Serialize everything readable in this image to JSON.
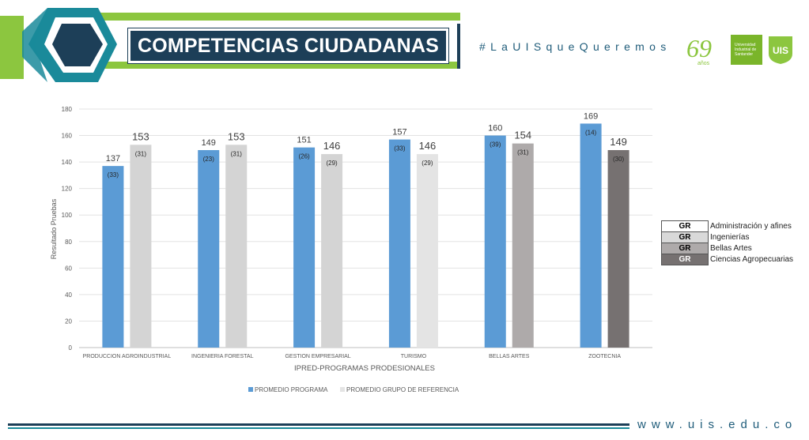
{
  "header": {
    "title": "COMPETENCIAS CIUDADANAS",
    "hashtag": "#LaUISqueQueremos",
    "anniversary_number": "69",
    "anniversary_word": "años",
    "university_name_lines": [
      "Universidad",
      "Industrial de",
      "Santander"
    ],
    "shield_text": "UIS"
  },
  "colors": {
    "programa": "#5b9bd5",
    "grupo_default": "#d4d4d4",
    "grupo_turismo": "#e4e4e4",
    "grupo_bellas_artes": "#aeaaaa",
    "grupo_zootecnia": "#767171",
    "banner_navy": "#1d3f58",
    "banner_green": "#8cc63f",
    "banner_teal": "#1a8a9a"
  },
  "chart_data": {
    "type": "bar",
    "xlabel": "IPRED-PROGRAMAS PRODESIONALES",
    "ylabel": "Resultado Pruebas",
    "ylim": [
      0,
      180
    ],
    "yticks": [
      "0",
      "20",
      "40",
      "60",
      "80",
      "100",
      "120",
      "140",
      "160",
      "180"
    ],
    "grid": true,
    "legend_position": "bottom",
    "categories": [
      "PRODUCCION AGROINDUSTRIAL",
      "INGENIERIA FORESTAL",
      "GESTION EMPRESARIAL",
      "TURISMO",
      "BELLAS ARTES",
      "ZOOTECNIA"
    ],
    "series": [
      {
        "name": "PROMEDIO PROGRAMA",
        "values": [
          137,
          149,
          151,
          157,
          160,
          169
        ],
        "labels": [
          "137",
          "149",
          "151",
          "157",
          "160",
          "169"
        ],
        "counts": [
          "(33)",
          "(23)",
          "(26)",
          "(33)",
          "(39)",
          "(14)"
        ]
      },
      {
        "name": "PROMEDIO GRUPO DE REFERENCIA",
        "values": [
          153,
          153,
          146,
          146,
          154,
          149
        ],
        "labels": [
          "153",
          "153",
          "146",
          "146",
          "154",
          "149"
        ],
        "counts": [
          "(31)",
          "(31)",
          "(29)",
          "(29)",
          "(31)",
          "(30)"
        ]
      }
    ]
  },
  "group_legend": [
    {
      "code": "GR",
      "label": "Administración y afines",
      "color": "#ffffff",
      "text_color": "#000000"
    },
    {
      "code": "GR",
      "label": "Ingenierías",
      "color": "#d9d9d9",
      "text_color": "#000000"
    },
    {
      "code": "GR",
      "label": "Bellas Artes",
      "color": "#aeaaaa",
      "text_color": "#000000"
    },
    {
      "code": "GR",
      "label": "Ciencias Agropecuarias",
      "color": "#767171",
      "text_color": "#ffffff"
    }
  ],
  "footer": {
    "url": "www.uis.edu.co"
  }
}
